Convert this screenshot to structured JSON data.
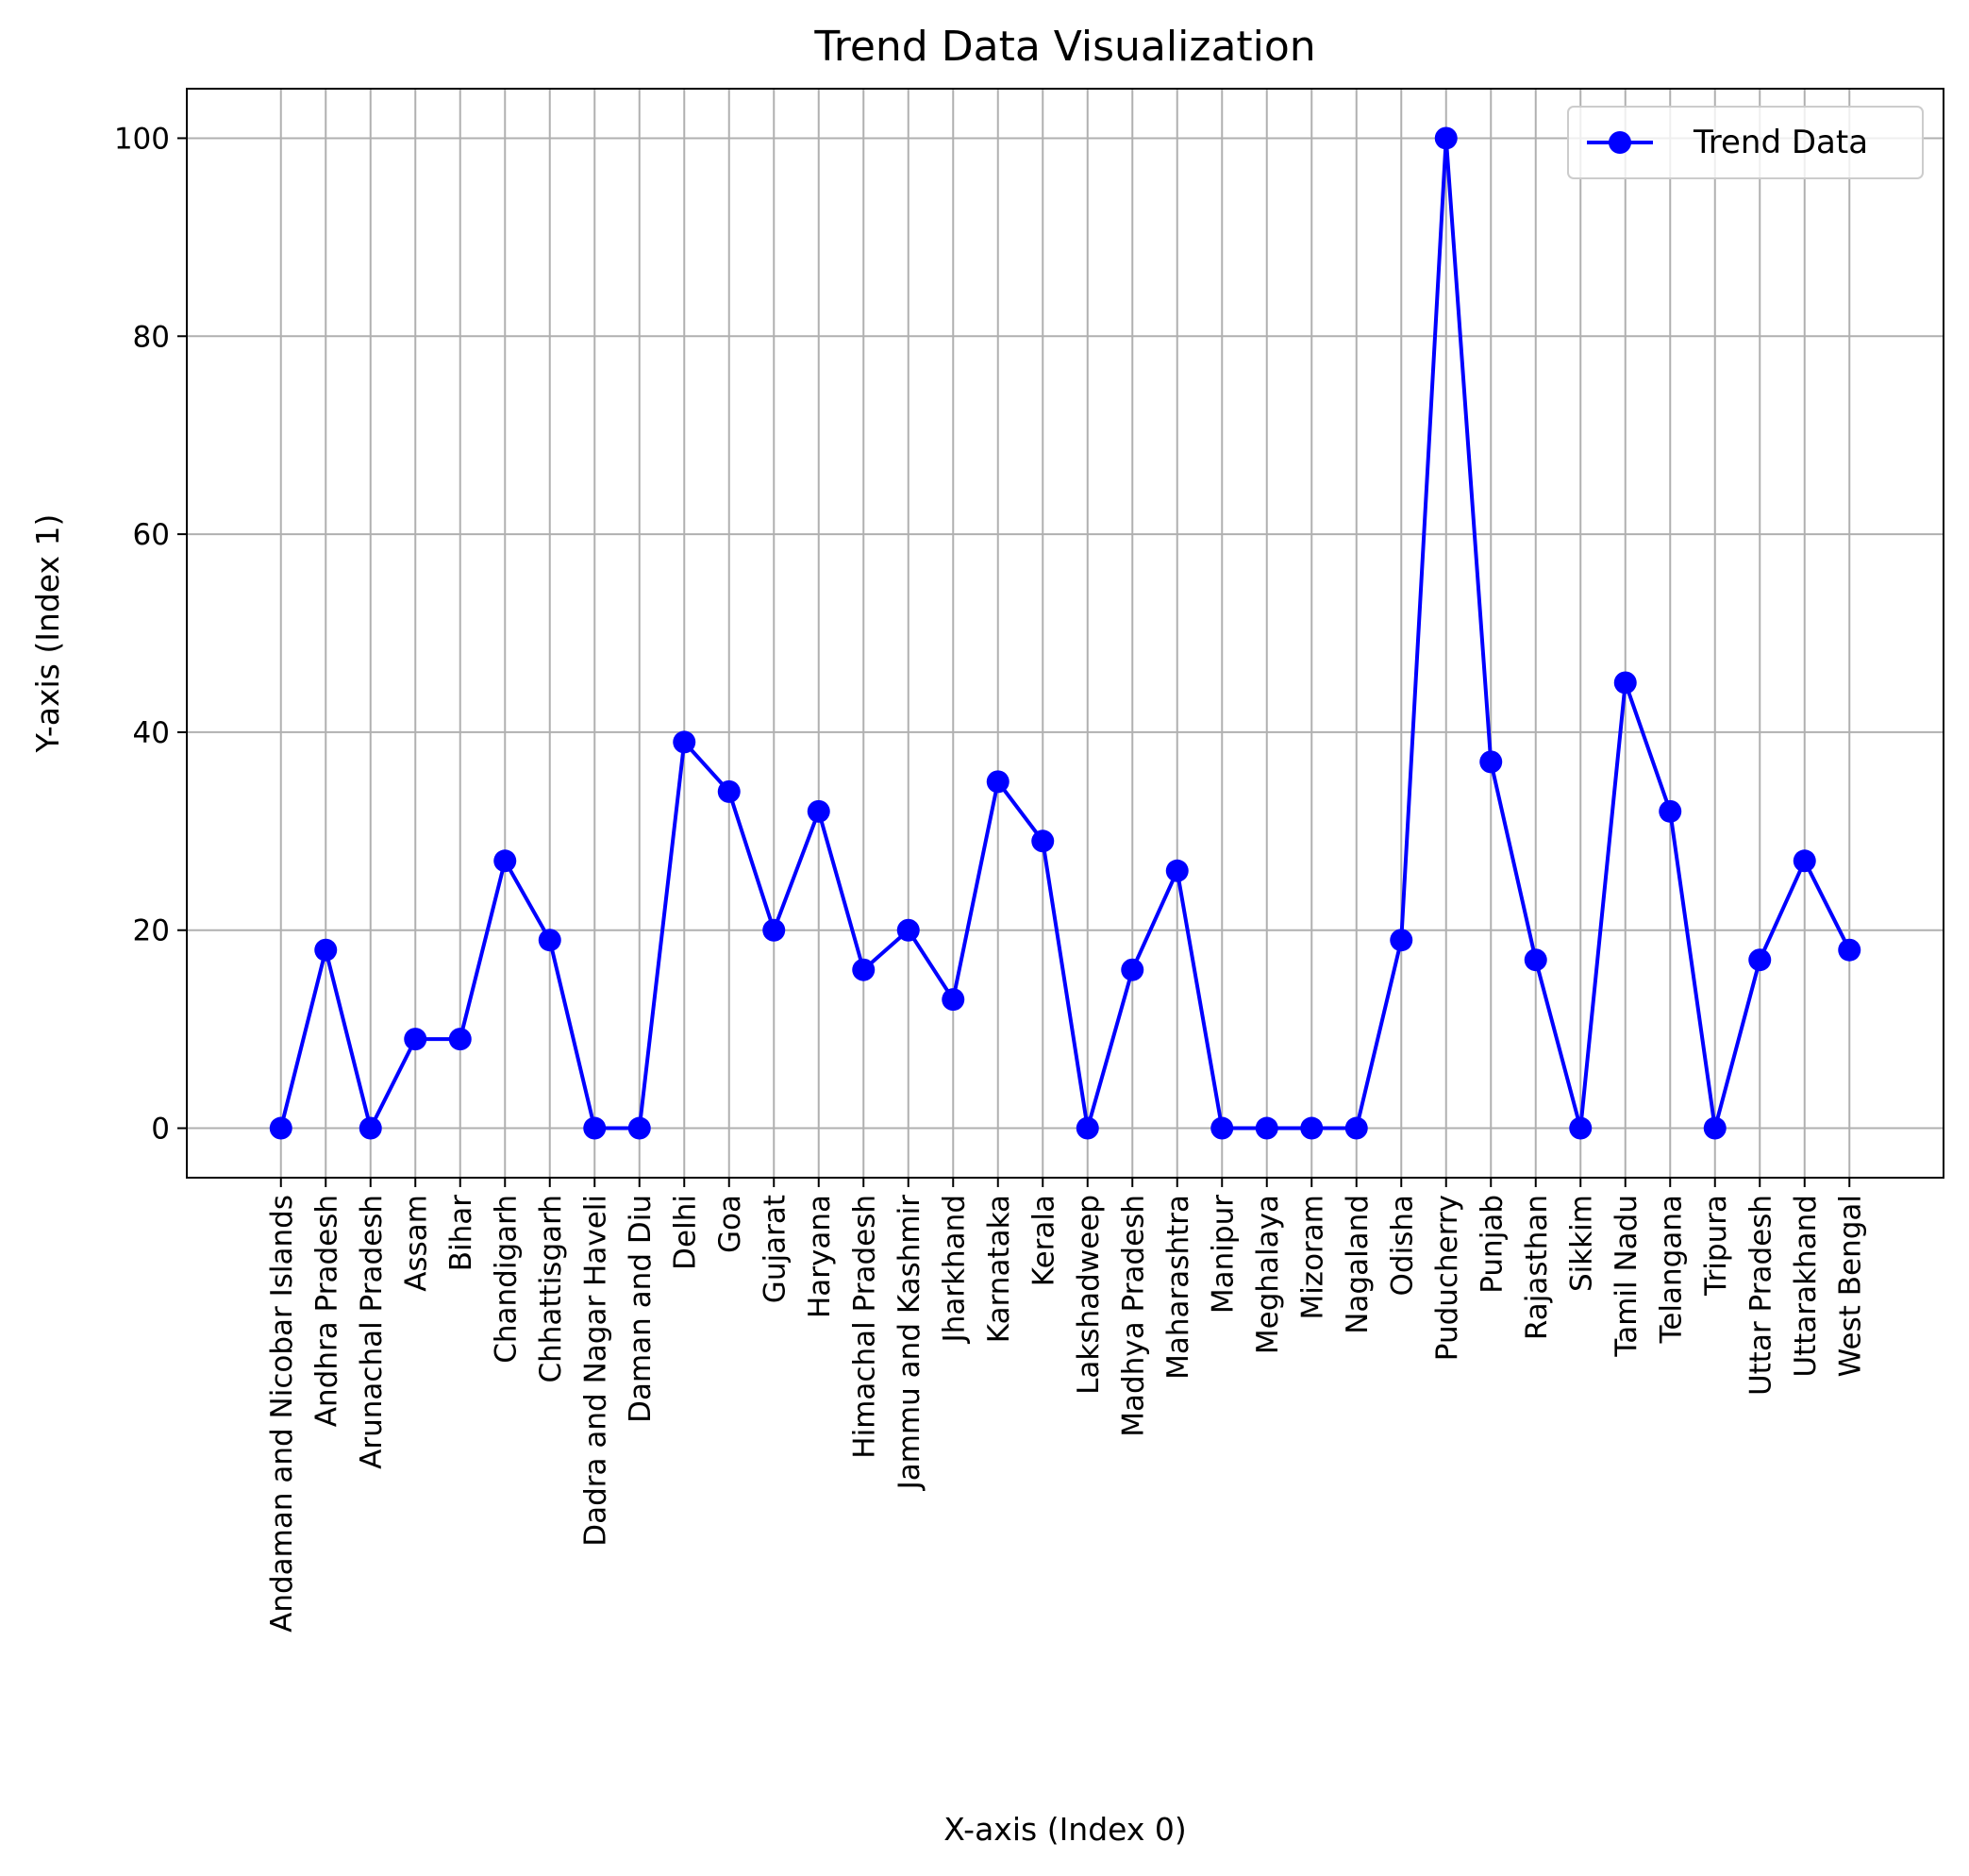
{
  "chart_data": {
    "type": "line",
    "title": "Trend Data Visualization",
    "xlabel": "X-axis (Index 0)",
    "ylabel": "Y-axis (Index 1)",
    "ylim": [
      -5,
      105
    ],
    "yticks": [
      0,
      20,
      40,
      60,
      80,
      100
    ],
    "grid": true,
    "legend_position": "top-right",
    "categories": [
      "Andaman and Nicobar Islands",
      "Andhra Pradesh",
      "Arunachal Pradesh",
      "Assam",
      "Bihar",
      "Chandigarh",
      "Chhattisgarh",
      "Dadra and Nagar Haveli",
      "Daman and Diu",
      "Delhi",
      "Goa",
      "Gujarat",
      "Haryana",
      "Himachal Pradesh",
      "Jammu and Kashmir",
      "Jharkhand",
      "Karnataka",
      "Kerala",
      "Lakshadweep",
      "Madhya Pradesh",
      "Maharashtra",
      "Manipur",
      "Meghalaya",
      "Mizoram",
      "Nagaland",
      "Odisha",
      "Puducherry",
      "Punjab",
      "Rajasthan",
      "Sikkim",
      "Tamil Nadu",
      "Telangana",
      "Tripura",
      "Uttar Pradesh",
      "Uttarakhand",
      "West Bengal"
    ],
    "series": [
      {
        "name": "Trend Data",
        "color": "#0000ff",
        "marker": "circle",
        "values": [
          0,
          18,
          0,
          9,
          9,
          27,
          19,
          0,
          0,
          39,
          34,
          20,
          32,
          16,
          20,
          13,
          35,
          29,
          0,
          16,
          26,
          0,
          0,
          0,
          0,
          19,
          100,
          37,
          17,
          0,
          45,
          32,
          0,
          17,
          27,
          18
        ]
      }
    ]
  }
}
